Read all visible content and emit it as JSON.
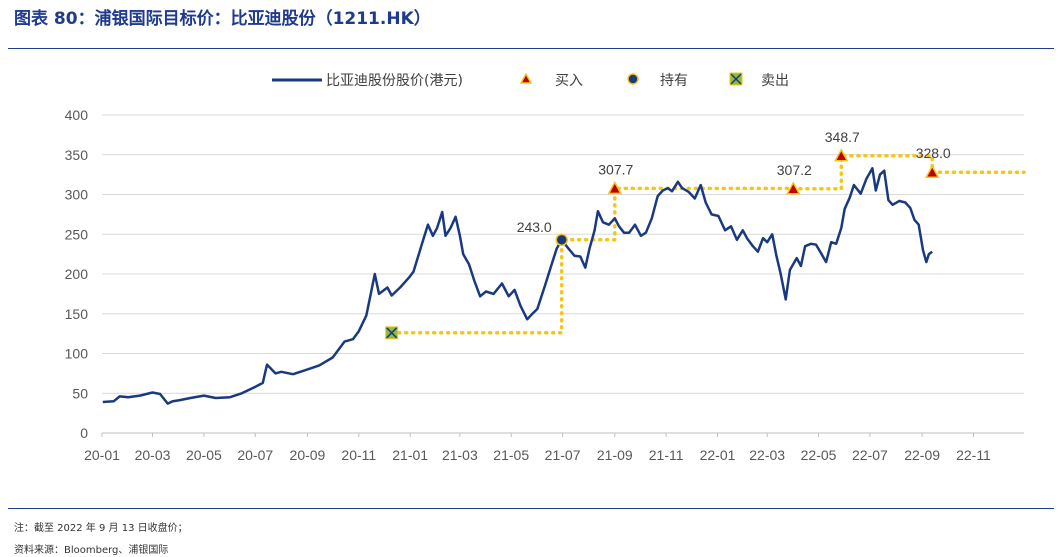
{
  "header": {
    "title": "图表 80：浦银国际目标价：比亚迪股份（1211.HK）"
  },
  "notes": {
    "note1": "注：截至 2022 年 9 月 13 日收盘价；",
    "note2": "资料来源：Bloomberg、浦银国际"
  },
  "colors": {
    "price": "#1a3a80",
    "target": "#f5c518",
    "buy_fill": "#c00000",
    "hold_fill": "#1a3a80",
    "sell_fill": "#8fbc3b",
    "grid": "#d9d9d9"
  },
  "chart_data": {
    "type": "line",
    "ylim": [
      0,
      400
    ],
    "yticks": [
      "0",
      "50",
      "100",
      "150",
      "200",
      "250",
      "300",
      "350",
      "400"
    ],
    "xticks": [
      "20-01",
      "20-03",
      "20-05",
      "20-07",
      "20-09",
      "20-11",
      "21-01",
      "21-03",
      "21-05",
      "21-07",
      "21-09",
      "21-11",
      "22-01",
      "22-03",
      "22-05",
      "22-07",
      "22-09",
      "22-11"
    ],
    "legend": {
      "placement": "top",
      "line": "比亚迪股份股价(港元)",
      "buy": "买入",
      "hold": "持有",
      "sell": "卖出"
    },
    "series": [
      {
        "name": "比亚迪股份股价(港元)",
        "points": [
          [
            "2020-01-02",
            39
          ],
          [
            "2020-01-15",
            40
          ],
          [
            "2020-01-22",
            46
          ],
          [
            "2020-02-01",
            45
          ],
          [
            "2020-02-15",
            47
          ],
          [
            "2020-03-01",
            51
          ],
          [
            "2020-03-10",
            49
          ],
          [
            "2020-03-19",
            37
          ],
          [
            "2020-03-25",
            40
          ],
          [
            "2020-04-01",
            41
          ],
          [
            "2020-04-15",
            44
          ],
          [
            "2020-05-01",
            47
          ],
          [
            "2020-05-15",
            44
          ],
          [
            "2020-06-01",
            45
          ],
          [
            "2020-06-15",
            50
          ],
          [
            "2020-07-01",
            58
          ],
          [
            "2020-07-10",
            63
          ],
          [
            "2020-07-15",
            86
          ],
          [
            "2020-07-25",
            75
          ],
          [
            "2020-08-01",
            77
          ],
          [
            "2020-08-15",
            74
          ],
          [
            "2020-09-01",
            80
          ],
          [
            "2020-09-15",
            85
          ],
          [
            "2020-10-01",
            95
          ],
          [
            "2020-10-15",
            115
          ],
          [
            "2020-10-25",
            118
          ],
          [
            "2020-11-01",
            128
          ],
          [
            "2020-11-10",
            148
          ],
          [
            "2020-11-20",
            200
          ],
          [
            "2020-11-25",
            175
          ],
          [
            "2020-12-05",
            183
          ],
          [
            "2020-12-10",
            173
          ],
          [
            "2020-12-20",
            183
          ],
          [
            "2020-12-31",
            196
          ],
          [
            "2021-01-05",
            203
          ],
          [
            "2021-01-15",
            238
          ],
          [
            "2021-01-22",
            262
          ],
          [
            "2021-01-28",
            248
          ],
          [
            "2021-02-02",
            258
          ],
          [
            "2021-02-08",
            278
          ],
          [
            "2021-02-12",
            248
          ],
          [
            "2021-02-18",
            258
          ],
          [
            "2021-02-24",
            272
          ],
          [
            "2021-03-01",
            248
          ],
          [
            "2021-03-05",
            225
          ],
          [
            "2021-03-12",
            212
          ],
          [
            "2021-03-18",
            192
          ],
          [
            "2021-03-25",
            172
          ],
          [
            "2021-04-01",
            178
          ],
          [
            "2021-04-10",
            175
          ],
          [
            "2021-04-20",
            188
          ],
          [
            "2021-04-28",
            172
          ],
          [
            "2021-05-05",
            180
          ],
          [
            "2021-05-12",
            160
          ],
          [
            "2021-05-20",
            143
          ],
          [
            "2021-05-26",
            150
          ],
          [
            "2021-06-01",
            156
          ],
          [
            "2021-06-10",
            185
          ],
          [
            "2021-06-18",
            212
          ],
          [
            "2021-06-24",
            232
          ],
          [
            "2021-06-30",
            243
          ],
          [
            "2021-07-08",
            232
          ],
          [
            "2021-07-15",
            223
          ],
          [
            "2021-07-22",
            222
          ],
          [
            "2021-07-28",
            208
          ],
          [
            "2021-08-02",
            232
          ],
          [
            "2021-08-08",
            255
          ],
          [
            "2021-08-12",
            279
          ],
          [
            "2021-08-18",
            265
          ],
          [
            "2021-08-25",
            262
          ],
          [
            "2021-09-01",
            270
          ],
          [
            "2021-09-06",
            260
          ],
          [
            "2021-09-12",
            252
          ],
          [
            "2021-09-18",
            252
          ],
          [
            "2021-09-25",
            262
          ],
          [
            "2021-10-02",
            248
          ],
          [
            "2021-10-08",
            252
          ],
          [
            "2021-10-15",
            270
          ],
          [
            "2021-10-22",
            298
          ],
          [
            "2021-10-28",
            305
          ],
          [
            "2021-11-03",
            308
          ],
          [
            "2021-11-08",
            304
          ],
          [
            "2021-11-15",
            316
          ],
          [
            "2021-11-20",
            308
          ],
          [
            "2021-11-28",
            303
          ],
          [
            "2021-12-05",
            295
          ],
          [
            "2021-12-12",
            312
          ],
          [
            "2021-12-18",
            290
          ],
          [
            "2021-12-25",
            275
          ],
          [
            "2022-01-02",
            273
          ],
          [
            "2022-01-10",
            255
          ],
          [
            "2022-01-17",
            260
          ],
          [
            "2022-01-24",
            243
          ],
          [
            "2022-01-31",
            255
          ],
          [
            "2022-02-05",
            245
          ],
          [
            "2022-02-12",
            235
          ],
          [
            "2022-02-18",
            228
          ],
          [
            "2022-02-24",
            245
          ],
          [
            "2022-03-01",
            240
          ],
          [
            "2022-03-07",
            250
          ],
          [
            "2022-03-12",
            223
          ],
          [
            "2022-03-17",
            200
          ],
          [
            "2022-03-23",
            168
          ],
          [
            "2022-03-28",
            205
          ],
          [
            "2022-04-05",
            220
          ],
          [
            "2022-04-10",
            210
          ],
          [
            "2022-04-15",
            235
          ],
          [
            "2022-04-22",
            238
          ],
          [
            "2022-04-28",
            237
          ],
          [
            "2022-05-03",
            228
          ],
          [
            "2022-05-10",
            215
          ],
          [
            "2022-05-16",
            240
          ],
          [
            "2022-05-22",
            238
          ],
          [
            "2022-05-28",
            258
          ],
          [
            "2022-06-01",
            282
          ],
          [
            "2022-06-07",
            296
          ],
          [
            "2022-06-12",
            312
          ],
          [
            "2022-06-20",
            301
          ],
          [
            "2022-06-27",
            320
          ],
          [
            "2022-07-04",
            333
          ],
          [
            "2022-07-08",
            305
          ],
          [
            "2022-07-13",
            325
          ],
          [
            "2022-07-18",
            330
          ],
          [
            "2022-07-23",
            293
          ],
          [
            "2022-07-28",
            287
          ],
          [
            "2022-08-05",
            292
          ],
          [
            "2022-08-12",
            290
          ],
          [
            "2022-08-18",
            283
          ],
          [
            "2022-08-23",
            268
          ],
          [
            "2022-08-28",
            262
          ],
          [
            "2022-09-02",
            230
          ],
          [
            "2022-09-06",
            215
          ],
          [
            "2022-09-09",
            225
          ],
          [
            "2022-09-13",
            228
          ]
        ]
      },
      {
        "name": "target_price",
        "style": "dotted",
        "points": [
          [
            "2020-12-10",
            126
          ],
          [
            "2021-06-30",
            126
          ],
          [
            "2021-06-30",
            243
          ],
          [
            "2021-09-01",
            243
          ],
          [
            "2021-09-01",
            307.7
          ],
          [
            "2022-04-01",
            307.7
          ],
          [
            "2022-04-01",
            307.2
          ],
          [
            "2022-05-28",
            307.2
          ],
          [
            "2022-05-28",
            348.7
          ],
          [
            "2022-09-13",
            348.7
          ],
          [
            "2022-09-13",
            328
          ],
          [
            "2022-12-31",
            328
          ]
        ]
      }
    ],
    "ratings": [
      {
        "date": "2020-12-10",
        "price": 126,
        "type": "sell",
        "label": ""
      },
      {
        "date": "2021-06-30",
        "price": 243,
        "type": "hold",
        "label": "243.0"
      },
      {
        "date": "2021-09-01",
        "price": 307.7,
        "type": "buy",
        "label": "307.7"
      },
      {
        "date": "2022-04-01",
        "price": 307.2,
        "type": "buy",
        "label": "307.2"
      },
      {
        "date": "2022-05-28",
        "price": 348.7,
        "type": "buy",
        "label": "348.7"
      },
      {
        "date": "2022-09-13",
        "price": 328,
        "type": "buy",
        "label": "328.0"
      }
    ]
  }
}
